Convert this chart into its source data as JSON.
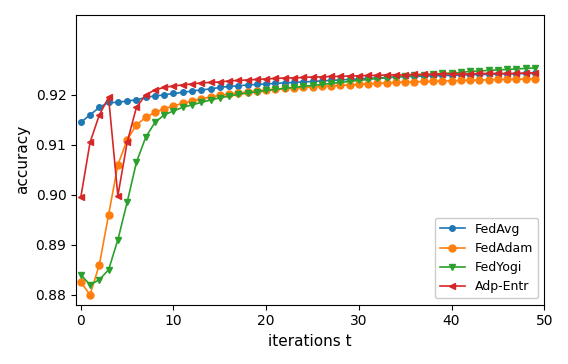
{
  "title": "",
  "xlabel": "iterations t",
  "ylabel": "accuracy",
  "xlim": [
    -0.5,
    50
  ],
  "ylim": [
    0.878,
    0.936
  ],
  "yticks": [
    0.88,
    0.89,
    0.9,
    0.91,
    0.92
  ],
  "xticks": [
    0,
    10,
    20,
    30,
    40,
    50
  ],
  "series": {
    "FedAvg": {
      "color": "#1f77b4",
      "marker": "o",
      "markersize": 4,
      "x": [
        0,
        1,
        2,
        3,
        4,
        5,
        6,
        7,
        8,
        9,
        10,
        11,
        12,
        13,
        14,
        15,
        16,
        17,
        18,
        19,
        20,
        21,
        22,
        23,
        24,
        25,
        26,
        27,
        28,
        29,
        30,
        31,
        32,
        33,
        34,
        35,
        36,
        37,
        38,
        39,
        40,
        41,
        42,
        43,
        44,
        45,
        46,
        47,
        48,
        49
      ],
      "y": [
        0.9145,
        0.916,
        0.9175,
        0.9185,
        0.9185,
        0.9188,
        0.919,
        0.9195,
        0.9198,
        0.92,
        0.9203,
        0.9205,
        0.9208,
        0.921,
        0.9212,
        0.9215,
        0.9217,
        0.9218,
        0.922,
        0.9221,
        0.9222,
        0.9223,
        0.9224,
        0.9225,
        0.9226,
        0.9227,
        0.9228,
        0.9229,
        0.923,
        0.9231,
        0.9232,
        0.9233,
        0.9234,
        0.9235,
        0.9236,
        0.9237,
        0.9237,
        0.9238,
        0.9238,
        0.9239,
        0.9239,
        0.924,
        0.924,
        0.9241,
        0.9241,
        0.9242,
        0.9242,
        0.9242,
        0.9243,
        0.9243
      ]
    },
    "FedAdam": {
      "color": "#ff7f0e",
      "marker": "o",
      "markersize": 5,
      "x": [
        0,
        1,
        2,
        3,
        4,
        5,
        6,
        7,
        8,
        9,
        10,
        11,
        12,
        13,
        14,
        15,
        16,
        17,
        18,
        19,
        20,
        21,
        22,
        23,
        24,
        25,
        26,
        27,
        28,
        29,
        30,
        31,
        32,
        33,
        34,
        35,
        36,
        37,
        38,
        39,
        40,
        41,
        42,
        43,
        44,
        45,
        46,
        47,
        48,
        49
      ],
      "y": [
        0.8825,
        0.88,
        0.886,
        0.896,
        0.906,
        0.911,
        0.914,
        0.9155,
        0.9165,
        0.9172,
        0.9178,
        0.9183,
        0.9188,
        0.9192,
        0.9196,
        0.9199,
        0.9202,
        0.9204,
        0.9206,
        0.9208,
        0.921,
        0.9211,
        0.9213,
        0.9214,
        0.9215,
        0.9216,
        0.9217,
        0.9218,
        0.9219,
        0.922,
        0.9221,
        0.9222,
        0.9223,
        0.9224,
        0.9225,
        0.9226,
        0.9226,
        0.9227,
        0.9227,
        0.9228,
        0.9228,
        0.9229,
        0.9229,
        0.923,
        0.923,
        0.9231,
        0.9231,
        0.9231,
        0.9232,
        0.9232
      ]
    },
    "FedYogi": {
      "color": "#2ca02c",
      "marker": "v",
      "markersize": 5,
      "x": [
        0,
        1,
        2,
        3,
        4,
        5,
        6,
        7,
        8,
        9,
        10,
        11,
        12,
        13,
        14,
        15,
        16,
        17,
        18,
        19,
        20,
        21,
        22,
        23,
        24,
        25,
        26,
        27,
        28,
        29,
        30,
        31,
        32,
        33,
        34,
        35,
        36,
        37,
        38,
        39,
        40,
        41,
        42,
        43,
        44,
        45,
        46,
        47,
        48,
        49
      ],
      "y": [
        0.884,
        0.882,
        0.883,
        0.885,
        0.891,
        0.8985,
        0.9065,
        0.9115,
        0.9145,
        0.916,
        0.9168,
        0.9175,
        0.918,
        0.9185,
        0.919,
        0.9194,
        0.9198,
        0.9201,
        0.9204,
        0.9206,
        0.9209,
        0.9211,
        0.9213,
        0.9215,
        0.9217,
        0.9219,
        0.9221,
        0.9223,
        0.9225,
        0.9227,
        0.9229,
        0.9231,
        0.9233,
        0.9234,
        0.9236,
        0.9237,
        0.9239,
        0.924,
        0.9242,
        0.9243,
        0.9244,
        0.9245,
        0.9247,
        0.9248,
        0.9249,
        0.925,
        0.9251,
        0.9252,
        0.9253,
        0.9254
      ]
    },
    "Adp-Entr": {
      "color": "#d62728",
      "marker": "<",
      "markersize": 5,
      "x": [
        0,
        1,
        2,
        3,
        4,
        5,
        6,
        7,
        8,
        9,
        10,
        11,
        12,
        13,
        14,
        15,
        16,
        17,
        18,
        19,
        20,
        21,
        22,
        23,
        24,
        25,
        26,
        27,
        28,
        29,
        30,
        31,
        32,
        33,
        34,
        35,
        36,
        37,
        38,
        39,
        40,
        41,
        42,
        43,
        44,
        45,
        46,
        47,
        48,
        49
      ],
      "y": [
        0.8995,
        0.9105,
        0.916,
        0.9195,
        0.8998,
        0.9105,
        0.9175,
        0.92,
        0.921,
        0.9215,
        0.9218,
        0.922,
        0.9222,
        0.9224,
        0.9225,
        0.9226,
        0.9228,
        0.9229,
        0.923,
        0.9231,
        0.9232,
        0.9233,
        0.9234,
        0.9234,
        0.9235,
        0.9236,
        0.9236,
        0.9237,
        0.9237,
        0.9238,
        0.9238,
        0.9239,
        0.9239,
        0.924,
        0.924,
        0.924,
        0.9241,
        0.9241,
        0.9241,
        0.9242,
        0.9242,
        0.9242,
        0.9242,
        0.9243,
        0.9243,
        0.9243,
        0.9243,
        0.9243,
        0.9244,
        0.9244
      ]
    }
  },
  "legend_order": [
    "FedAvg",
    "FedAdam",
    "FedYogi",
    "Adp-Entr"
  ],
  "legend_loc": "lower right",
  "figsize": [
    5.68,
    3.64
  ],
  "dpi": 100
}
